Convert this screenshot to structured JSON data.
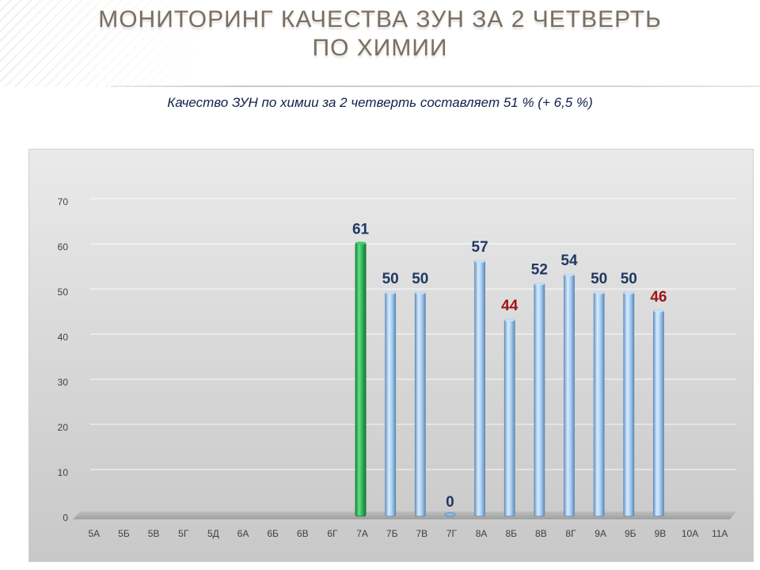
{
  "slide": {
    "title_line1": "МОНИТОРИНГ КАЧЕСТВА ЗУН ЗА 2  ЧЕТВЕРТЬ",
    "title_line2": "ПО  ХИМИИ",
    "subtitle": "Качество ЗУН по химии  за 2 четверть  составляет 51 % (+ 6,5 %)"
  },
  "chart_data": {
    "type": "bar",
    "categories": [
      "5А",
      "5Б",
      "5В",
      "5Г",
      "5Д",
      "6А",
      "6Б",
      "6В",
      "6Г",
      "7А",
      "7Б",
      "7В",
      "7Г",
      "8А",
      "8Б",
      "8В",
      "8Г",
      "9А",
      "9Б",
      "9В",
      "10А",
      "11А"
    ],
    "values": [
      null,
      null,
      null,
      null,
      null,
      null,
      null,
      null,
      null,
      61,
      50,
      50,
      0,
      57,
      44,
      52,
      54,
      50,
      50,
      46,
      null,
      null
    ],
    "data_labels": [
      "",
      "",
      "",
      "",
      "",
      "",
      "",
      "",
      "",
      "61",
      "50",
      "50",
      "0",
      "57",
      "44",
      "52",
      "54",
      "50",
      "50",
      "46",
      "",
      ""
    ],
    "yticks": [
      "0",
      "10",
      "20",
      "30",
      "40",
      "50",
      "60",
      "70"
    ],
    "ylim": [
      0,
      70
    ],
    "grid": true,
    "legend": "none",
    "colors": {
      "default_bar": "#9cc2e6",
      "highlight_bar": "#2fb356",
      "label_default": "#1f3864",
      "label_low": "#a01414",
      "axis_text": "#404040"
    },
    "highlight_categories": [
      "7А"
    ],
    "low_categories": [
      "8Б",
      "9В"
    ]
  }
}
